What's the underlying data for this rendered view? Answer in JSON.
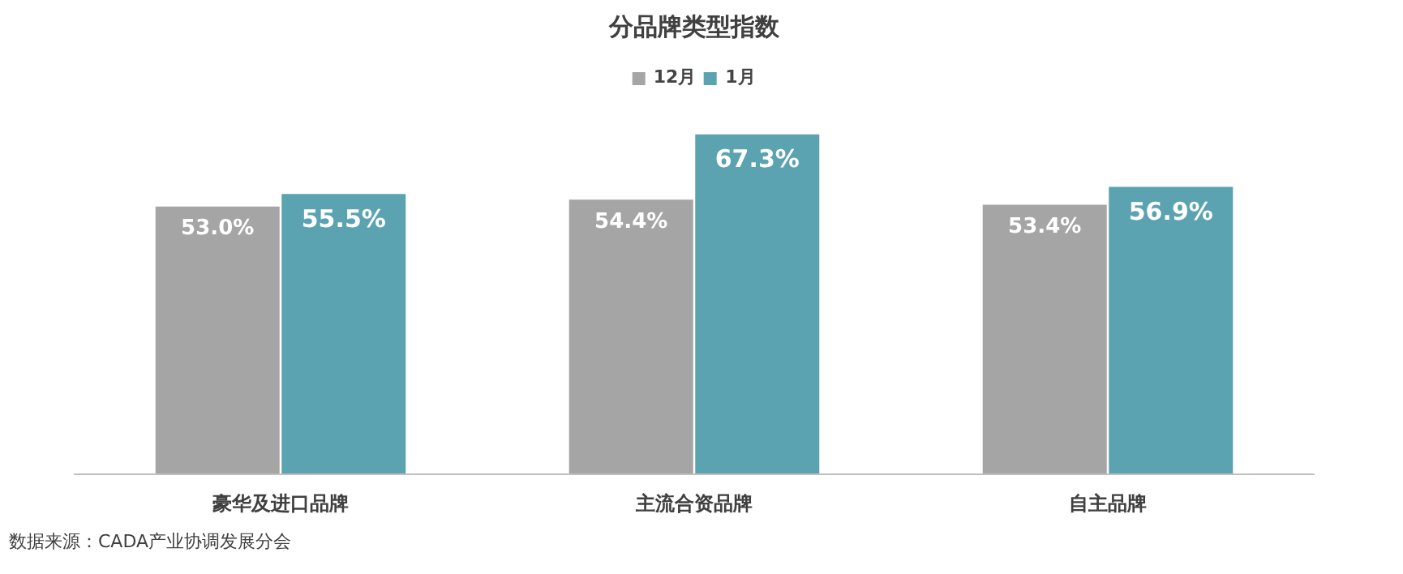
{
  "chart_data": {
    "type": "bar",
    "title": "分品牌类型指数",
    "categories": [
      "豪华及进口品牌",
      "主流合资品牌",
      "自主品牌"
    ],
    "series": [
      {
        "name": "12月",
        "color": "#a5a5a5",
        "values": [
          53.0,
          54.4,
          53.4
        ],
        "value_labels": [
          "53.0%",
          "54.4%",
          "53.4%"
        ]
      },
      {
        "name": "1月",
        "color": "#5ba3b0",
        "values": [
          55.5,
          67.3,
          56.9
        ],
        "value_labels": [
          "55.5%",
          "67.3%",
          "56.9%"
        ]
      }
    ],
    "legend": "top",
    "annotations": [
      "数据来源：CADA产业协调发展分会"
    ]
  }
}
